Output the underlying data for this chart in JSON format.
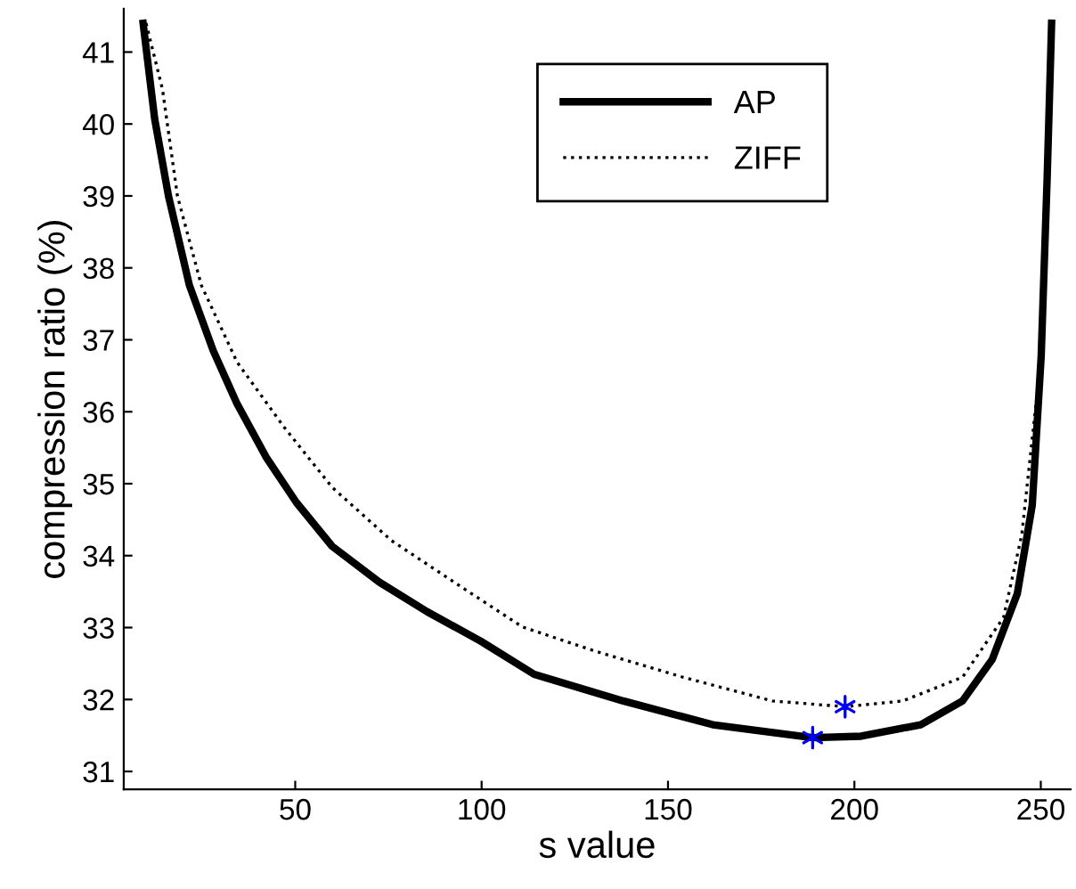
{
  "chart_data": {
    "type": "line",
    "xlabel": "s value",
    "ylabel": "compression ratio (%)",
    "xlim": [
      4,
      258
    ],
    "xticks": [
      50,
      100,
      150,
      200,
      250
    ],
    "ylim": [
      30.75,
      41.6
    ],
    "yticks": [
      31,
      32,
      33,
      34,
      35,
      36,
      37,
      38,
      39,
      40,
      41
    ],
    "grid": false,
    "legend": "top right",
    "series": [
      {
        "name": "AP",
        "color": "#000000",
        "line_style": "solid",
        "x": [
          9.2,
          12.3,
          16.0,
          21.6,
          28.0,
          34.4,
          42.3,
          50.3,
          59.9,
          72.6,
          85.4,
          99.8,
          114.1,
          138,
          162,
          188.8,
          201.8,
          217.8,
          229,
          237,
          243.7,
          247.7,
          250.1,
          251.7,
          252.9
        ],
        "values": [
          41.4,
          40.07,
          39.0,
          37.76,
          36.85,
          36.11,
          35.36,
          34.74,
          34.13,
          33.63,
          33.22,
          32.81,
          32.35,
          31.98,
          31.65,
          31.47,
          31.49,
          31.65,
          31.98,
          32.56,
          33.47,
          34.7,
          36.77,
          39.24,
          41.4
        ]
      },
      {
        "name": "ZIFF",
        "color": "#000000",
        "line_style": "dotted",
        "x": [
          10.0,
          14.4,
          18.4,
          24.8,
          34.4,
          47.1,
          59.9,
          75.8,
          95.0,
          110.9,
          130,
          154,
          178,
          197.5,
          213,
          229,
          240,
          244.9,
          250.1,
          252.5,
          252.9
        ],
        "values": [
          41.4,
          40.48,
          39.0,
          37.76,
          36.69,
          35.78,
          34.95,
          34.21,
          33.55,
          33.01,
          32.68,
          32.31,
          31.98,
          31.9,
          31.98,
          32.31,
          33.14,
          34.29,
          36.77,
          40.2,
          41.4
        ]
      },
      {
        "type": "scatter",
        "color": "#0000ff",
        "marker": "cross",
        "x": [
          188.8,
          197.5
        ],
        "values": [
          31.47,
          31.9
        ]
      }
    ]
  }
}
